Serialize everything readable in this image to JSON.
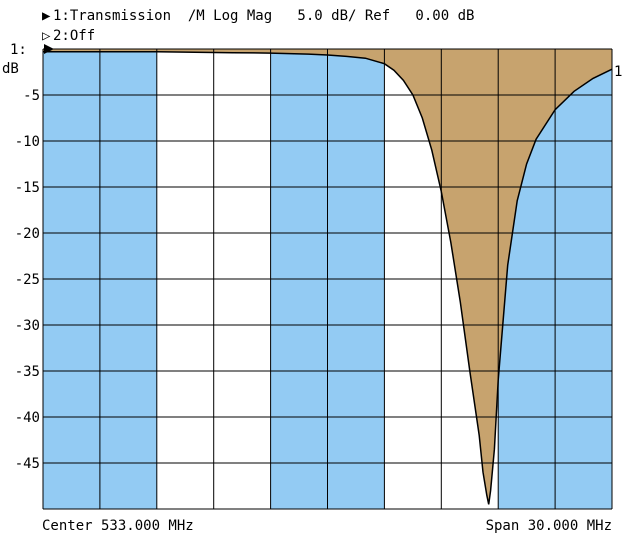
{
  "header": {
    "trace1_marker": "▶",
    "trace1_text": "1:Transmission  /M Log Mag   5.0 dB/ Ref   0.00 dB",
    "trace2_marker": "▷",
    "trace2_text": "2:Off"
  },
  "axis": {
    "y_unit_top": "1:",
    "y_unit_label": "dB",
    "right_trace_marker": "1"
  },
  "footer": {
    "center": "Center 533.000 MHz",
    "span": "Span 30.000 MHz"
  },
  "colors": {
    "band_fill": "#93cbf3",
    "trace_fill": "#c7a36e",
    "grid": "#000000",
    "trace": "#000000"
  },
  "chart_data": {
    "type": "area",
    "title": "1:Transmission /M Log Mag 5.0 dB/ Ref 0.00 dB",
    "xlabel": "",
    "ylabel": "dB",
    "x_unit": "MHz",
    "xlim": [
      518.0,
      548.0
    ],
    "ylim": [
      -50,
      0
    ],
    "yticks": [
      0,
      -5,
      -10,
      -15,
      -20,
      -25,
      -30,
      -35,
      -40,
      -45
    ],
    "ytick_labels": [
      "",
      "-5",
      "-10",
      "-15",
      "-20",
      "-25",
      "-30",
      "-35",
      "-40",
      "-45"
    ],
    "x_divisions": 10,
    "y_divisions": 10,
    "grid": true,
    "shaded_bands_mhz": [
      [
        518.0,
        524.0
      ],
      [
        530.0,
        536.0
      ],
      [
        542.0,
        548.0
      ]
    ],
    "reference_level_db": 0,
    "series": [
      {
        "name": "1:Transmission",
        "x": [
          518.0,
          520.0,
          522.0,
          524.0,
          526.0,
          528.0,
          530.0,
          532.0,
          533.0,
          534.0,
          535.0,
          536.0,
          536.5,
          537.0,
          537.5,
          538.0,
          538.5,
          539.0,
          539.5,
          540.0,
          540.5,
          541.0,
          541.2,
          541.4,
          541.5,
          541.6,
          541.8,
          542.0,
          542.5,
          543.0,
          543.5,
          544.0,
          545.0,
          546.0,
          547.0,
          548.0
        ],
        "values": [
          -0.3,
          -0.3,
          -0.3,
          -0.3,
          -0.35,
          -0.4,
          -0.45,
          -0.55,
          -0.65,
          -0.8,
          -1.0,
          -1.6,
          -2.3,
          -3.4,
          -5.0,
          -7.5,
          -11.0,
          -15.5,
          -21.0,
          -27.5,
          -35.0,
          -42.0,
          -46.0,
          -48.5,
          -49.5,
          -48.0,
          -43.5,
          -36.0,
          -23.5,
          -16.5,
          -12.5,
          -9.8,
          -6.6,
          -4.6,
          -3.2,
          -2.2
        ]
      }
    ]
  }
}
